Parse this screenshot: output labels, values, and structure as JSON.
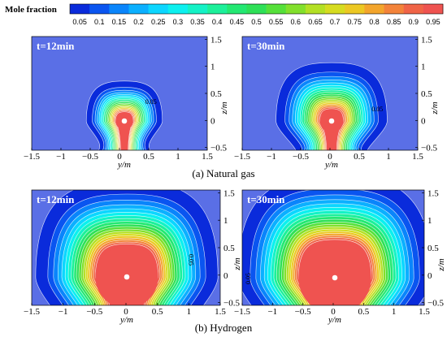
{
  "chart_data": {
    "type": "heatmap",
    "colorbar": {
      "title": "Mole fraction",
      "levels": [
        0.05,
        0.1,
        0.15,
        0.2,
        0.25,
        0.3,
        0.35,
        0.4,
        0.45,
        0.5,
        0.55,
        0.6,
        0.65,
        0.7,
        0.75,
        0.8,
        0.85,
        0.9,
        0.95
      ],
      "tick_labels": [
        "0.05",
        "0.1",
        "0.15",
        "0.2",
        "0.25",
        "0.3",
        "0.35",
        "0.4",
        "0.45",
        "0.5",
        "0.55",
        "0.6",
        "0.65",
        "0.7",
        "0.75",
        "0.8",
        "0.85",
        "0.9",
        "0.95"
      ],
      "colors": [
        "#0a2bdb",
        "#0a55f0",
        "#0a85fb",
        "#0bb0ff",
        "#0cd6ff",
        "#0cf0ef",
        "#14f2c6",
        "#1cf09a",
        "#23e872",
        "#2ee057",
        "#55e03a",
        "#82e02c",
        "#b3e024",
        "#d6dc20",
        "#ecc823",
        "#f3a52c",
        "#f3833a",
        "#f06447",
        "#ef5350"
      ],
      "background": "#5a6fe6"
    },
    "xlabel": "y/m",
    "ylabel": "z/m",
    "xticks": [
      "−1.5",
      "−1",
      "−0.5",
      "0",
      "0.5",
      "1",
      "1.5"
    ],
    "yticks": [
      "1.5",
      "1",
      "0.5",
      "0",
      "−0.5"
    ],
    "xlim": [
      -1.5,
      1.5
    ],
    "ylim": [
      -0.55,
      1.55
    ],
    "panels": [
      {
        "title": "t=12min",
        "contour_label": "0.05",
        "core_radius": 0.15,
        "plume_extent": 0.65
      },
      {
        "title": "t=30min",
        "contour_label": "0.05",
        "core_radius": 0.2,
        "plume_extent": 0.95
      },
      {
        "title": "t=12min",
        "contour_label": "0.05",
        "core_radius": 0.5,
        "plume_extent": 1.45
      },
      {
        "title": "t=30min",
        "contour_label": "0.05",
        "core_radius": 0.6,
        "plume_extent": 1.6
      }
    ],
    "captions": [
      "(a) Natural gas",
      "(b) Hydrogen"
    ]
  }
}
